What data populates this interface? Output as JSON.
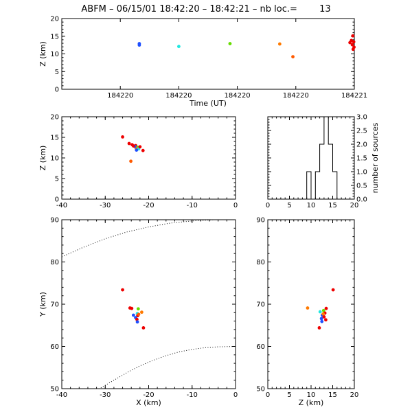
{
  "header": {
    "station": "ABFM",
    "date": "06/15/01",
    "time_range": "18:42:20 – 18:42:21",
    "count_label": "nb loc.=",
    "count": "13"
  },
  "chart_data": [
    {
      "id": "time-height",
      "type": "scatter",
      "xlabel": "Time (UT)",
      "ylabel": "Z (km)",
      "x_range": [
        0.0,
        1.0
      ],
      "ylim": [
        0,
        20
      ],
      "x_tick_values": [
        0.2,
        0.4,
        0.6,
        0.8,
        1.0
      ],
      "x_tick_labels": [
        "184220",
        "184220",
        "184220",
        "184220",
        "184221"
      ],
      "y_ticks": [
        0,
        5,
        10,
        15,
        20
      ],
      "grid": false,
      "points": [
        {
          "x": 0.265,
          "y": 12.9,
          "color": "#1e4fff"
        },
        {
          "x": 0.265,
          "y": 12.5,
          "color": "#1e4fff"
        },
        {
          "x": 0.4,
          "y": 12.1,
          "color": "#20e8e0"
        },
        {
          "x": 0.575,
          "y": 12.9,
          "color": "#66dd00"
        },
        {
          "x": 0.745,
          "y": 12.8,
          "color": "#ff7a00"
        },
        {
          "x": 0.79,
          "y": 9.2,
          "color": "#ff5a00"
        },
        {
          "x": 0.995,
          "y": 15.1,
          "color": "#ee0000"
        },
        {
          "x": 0.99,
          "y": 13.8,
          "color": "#ee0000"
        },
        {
          "x": 0.998,
          "y": 13.4,
          "color": "#ee0000"
        },
        {
          "x": 0.985,
          "y": 13.2,
          "color": "#ee0000"
        },
        {
          "x": 0.993,
          "y": 12.6,
          "color": "#ee0000"
        },
        {
          "x": 0.999,
          "y": 11.9,
          "color": "#ee0000"
        },
        {
          "x": 0.996,
          "y": 11.3,
          "color": "#ee0000"
        }
      ]
    },
    {
      "id": "x-height",
      "type": "scatter",
      "xlabel": "",
      "ylabel": "Z (km)",
      "xlim": [
        -40,
        0
      ],
      "ylim": [
        0,
        20
      ],
      "x_ticks": [
        -40,
        -30,
        -20,
        -10,
        0
      ],
      "y_ticks": [
        0,
        5,
        10,
        15,
        20
      ],
      "grid": false,
      "points": [
        {
          "x": -26.0,
          "y": 15.1,
          "color": "#ee0000"
        },
        {
          "x": -24.5,
          "y": 13.5,
          "color": "#ee0000"
        },
        {
          "x": -23.8,
          "y": 13.2,
          "color": "#ee0000"
        },
        {
          "x": -23.0,
          "y": 13.0,
          "color": "#ee0000"
        },
        {
          "x": -22.6,
          "y": 12.6,
          "color": "#66dd00"
        },
        {
          "x": -22.9,
          "y": 12.4,
          "color": "#ff7a00"
        },
        {
          "x": -22.3,
          "y": 12.2,
          "color": "#20e8e0"
        },
        {
          "x": -22.8,
          "y": 11.9,
          "color": "#1e4fff"
        },
        {
          "x": -23.2,
          "y": 12.8,
          "color": "#1e4fff"
        },
        {
          "x": -21.3,
          "y": 11.8,
          "color": "#ee0000"
        },
        {
          "x": -24.1,
          "y": 9.2,
          "color": "#ff5a00"
        },
        {
          "x": -23.5,
          "y": 12.9,
          "color": "#ee0000"
        },
        {
          "x": -22.0,
          "y": 12.7,
          "color": "#ee0000"
        }
      ]
    },
    {
      "id": "height-histogram",
      "type": "histogram",
      "xlabel": "",
      "ylabel": "number of sources",
      "xlim": [
        0,
        20
      ],
      "ylim": [
        0,
        3
      ],
      "x_ticks": [
        0,
        5,
        10,
        15,
        20
      ],
      "y_ticks": [
        0.0,
        0.5,
        1.0,
        1.5,
        2.0,
        2.5,
        3.0
      ],
      "y_tick_labels": [
        "0.0",
        "0.5",
        "1.0",
        "1.5",
        "2.0",
        "2.5",
        "3.0"
      ],
      "bin_edges": [
        0,
        1,
        2,
        3,
        4,
        5,
        6,
        7,
        8,
        9,
        10,
        11,
        12,
        13,
        14,
        15,
        16,
        17,
        18,
        19,
        20
      ],
      "values": [
        0,
        0,
        0,
        0,
        0,
        0,
        0,
        0,
        0,
        1,
        0,
        1,
        2,
        3,
        2,
        1,
        0,
        0,
        0,
        0
      ]
    },
    {
      "id": "plan-view",
      "type": "scatter",
      "xlabel": "X (km)",
      "ylabel": "Y (km)",
      "xlim": [
        -40,
        0
      ],
      "ylim": [
        50,
        90
      ],
      "x_ticks": [
        -40,
        -30,
        -20,
        -10,
        0
      ],
      "y_ticks": [
        50,
        60,
        70,
        80,
        90
      ],
      "grid": false,
      "points": [
        {
          "x": -26.0,
          "y": 73.4,
          "color": "#ee0000"
        },
        {
          "x": -24.3,
          "y": 69.1,
          "color": "#ee0000"
        },
        {
          "x": -23.9,
          "y": 69.0,
          "color": "#ee0000"
        },
        {
          "x": -22.4,
          "y": 68.9,
          "color": "#66dd00"
        },
        {
          "x": -21.6,
          "y": 68.1,
          "color": "#ff7a00"
        },
        {
          "x": -22.6,
          "y": 67.8,
          "color": "#20e8e0"
        },
        {
          "x": -23.5,
          "y": 67.4,
          "color": "#1e4fff"
        },
        {
          "x": -22.5,
          "y": 67.3,
          "color": "#ee0000"
        },
        {
          "x": -23.0,
          "y": 66.8,
          "color": "#1e4fff"
        },
        {
          "x": -22.7,
          "y": 66.4,
          "color": "#ee0000"
        },
        {
          "x": -22.6,
          "y": 65.8,
          "color": "#1e4fff"
        },
        {
          "x": -21.2,
          "y": 64.4,
          "color": "#ee0000"
        },
        {
          "x": -22.3,
          "y": 67.6,
          "color": "#ff5a00"
        }
      ],
      "dotted_curves": [
        [
          [
            -40,
            81.2
          ],
          [
            -35,
            83.5
          ],
          [
            -30,
            85.5
          ],
          [
            -25,
            87.1
          ],
          [
            -20,
            88.3
          ],
          [
            -15,
            89.2
          ],
          [
            -10,
            89.7
          ],
          [
            -5,
            90.0
          ]
        ],
        [
          [
            -31,
            50.2
          ],
          [
            -28,
            52.0
          ],
          [
            -25,
            53.8
          ],
          [
            -22,
            55.4
          ],
          [
            -19,
            56.7
          ],
          [
            -16,
            57.8
          ],
          [
            -13,
            58.7
          ],
          [
            -10,
            59.3
          ],
          [
            -7,
            59.7
          ],
          [
            -4,
            59.9
          ],
          [
            0,
            60.0
          ]
        ]
      ]
    },
    {
      "id": "z-y-view",
      "type": "scatter",
      "xlabel": "Z (km)",
      "ylabel": "",
      "xlim": [
        0,
        20
      ],
      "ylim": [
        50,
        90
      ],
      "x_ticks": [
        0,
        5,
        10,
        15,
        20
      ],
      "y_ticks": [
        50,
        60,
        70,
        80,
        90
      ],
      "grid": false,
      "points": [
        {
          "x": 15.1,
          "y": 73.4,
          "color": "#ee0000"
        },
        {
          "x": 9.2,
          "y": 69.1,
          "color": "#ff7a00"
        },
        {
          "x": 13.5,
          "y": 69.0,
          "color": "#ee0000"
        },
        {
          "x": 12.9,
          "y": 68.5,
          "color": "#66dd00"
        },
        {
          "x": 12.1,
          "y": 68.2,
          "color": "#20e8e0"
        },
        {
          "x": 13.2,
          "y": 67.9,
          "color": "#ee0000"
        },
        {
          "x": 12.6,
          "y": 67.4,
          "color": "#1e4fff"
        },
        {
          "x": 13.0,
          "y": 67.0,
          "color": "#ee0000"
        },
        {
          "x": 12.4,
          "y": 66.6,
          "color": "#1e4fff"
        },
        {
          "x": 12.5,
          "y": 65.9,
          "color": "#1e4fff"
        },
        {
          "x": 11.9,
          "y": 64.4,
          "color": "#ee0000"
        },
        {
          "x": 13.4,
          "y": 66.3,
          "color": "#ee0000"
        },
        {
          "x": 12.8,
          "y": 67.7,
          "color": "#ff7a00"
        }
      ]
    }
  ]
}
